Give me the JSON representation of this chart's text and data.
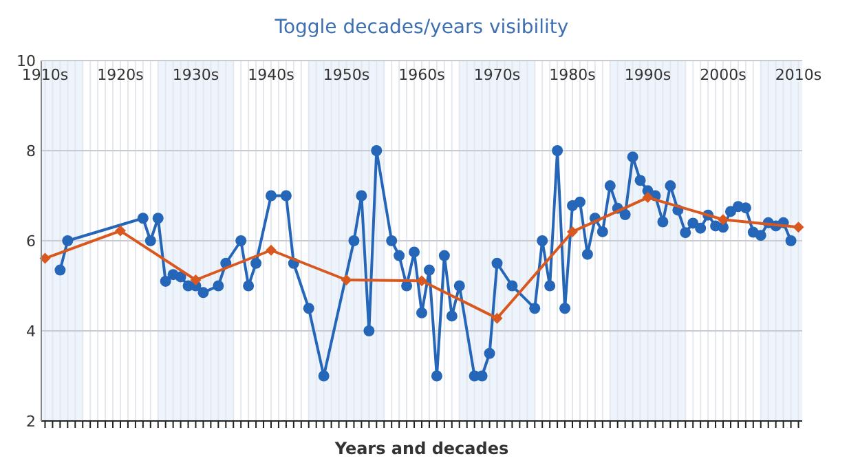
{
  "chart_data": {
    "type": "line",
    "title": "Toggle decades/years visibility",
    "xlabel": "Years and decades",
    "categories": [
      "1910s",
      null,
      null,
      null,
      null,
      null,
      null,
      null,
      null,
      null,
      "1920s",
      null,
      null,
      null,
      null,
      null,
      null,
      null,
      null,
      null,
      "1930s",
      null,
      null,
      null,
      null,
      null,
      null,
      null,
      null,
      null,
      "1940s",
      null,
      null,
      null,
      null,
      null,
      null,
      null,
      null,
      null,
      "1950s",
      null,
      null,
      null,
      null,
      null,
      null,
      null,
      null,
      null,
      "1960s",
      null,
      null,
      null,
      null,
      null,
      null,
      null,
      null,
      null,
      "1970s",
      null,
      null,
      null,
      null,
      null,
      null,
      null,
      null,
      null,
      "1980s",
      null,
      null,
      null,
      null,
      null,
      null,
      null,
      null,
      null,
      "1990s",
      null,
      null,
      null,
      null,
      null,
      null,
      null,
      null,
      null,
      "2000s",
      null,
      null,
      null,
      null,
      null,
      null,
      null,
      null,
      null,
      "2010s"
    ],
    "ylim": [
      2,
      10
    ],
    "yticks": [
      2,
      4,
      6,
      8,
      10
    ],
    "grid": true,
    "series": [
      {
        "color": "#2566b8",
        "marker": "circle",
        "values": [
          null,
          null,
          5.35,
          6,
          null,
          null,
          null,
          null,
          null,
          null,
          null,
          null,
          null,
          6.5,
          6,
          6.5,
          5.1,
          5.25,
          5.2,
          5,
          5,
          4.85,
          null,
          5,
          5.5,
          null,
          6,
          5,
          5.5,
          null,
          7,
          null,
          7,
          5.5,
          null,
          4.5,
          null,
          3,
          null,
          null,
          null,
          6,
          7,
          4,
          8,
          null,
          6,
          5.67,
          5,
          5.75,
          4.4,
          5.35,
          3,
          5.67,
          4.33,
          5,
          null,
          3,
          3,
          3.5,
          5.5,
          null,
          5,
          null,
          null,
          4.5,
          6,
          5,
          8,
          4.5,
          6.78,
          6.86,
          5.7,
          6.5,
          6.2,
          7.22,
          6.72,
          6.58,
          7.86,
          7.34,
          7.11,
          7,
          6.42,
          7.22,
          6.68,
          6.18,
          6.39,
          6.28,
          6.57,
          6.33,
          6.3,
          6.65,
          6.76,
          6.73,
          6.19,
          6.12,
          6.4,
          6.33,
          6.4,
          6,
          null
        ]
      },
      {
        "color": "#d9581f",
        "marker": "diamond",
        "values": [
          5.61,
          null,
          null,
          null,
          null,
          null,
          null,
          null,
          null,
          null,
          6.22,
          null,
          null,
          null,
          null,
          null,
          null,
          null,
          null,
          null,
          5.13,
          null,
          null,
          null,
          null,
          null,
          null,
          null,
          null,
          null,
          5.79,
          null,
          null,
          null,
          null,
          null,
          null,
          null,
          null,
          null,
          5.13,
          null,
          null,
          null,
          null,
          null,
          null,
          null,
          null,
          null,
          5.11,
          null,
          null,
          null,
          null,
          null,
          null,
          null,
          null,
          null,
          4.28,
          null,
          null,
          null,
          null,
          null,
          null,
          null,
          null,
          null,
          6.2,
          null,
          null,
          null,
          null,
          null,
          null,
          null,
          null,
          null,
          6.96,
          null,
          null,
          null,
          null,
          null,
          null,
          null,
          null,
          null,
          6.47,
          null,
          null,
          null,
          null,
          null,
          null,
          null,
          null,
          null,
          6.3
        ]
      }
    ]
  }
}
